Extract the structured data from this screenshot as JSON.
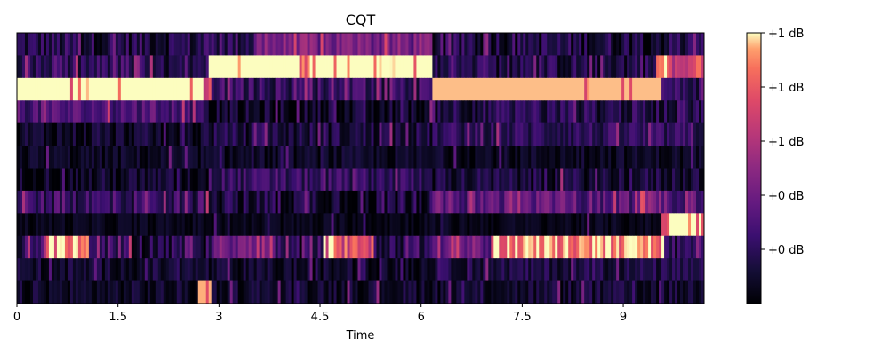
{
  "chart_data": {
    "type": "heatmap",
    "title": "CQT",
    "xlabel": "Time",
    "ylabel": "",
    "xlim": [
      0,
      10.2
    ],
    "x_ticks": [
      0,
      1.5,
      3,
      4.5,
      6,
      7.5,
      9
    ],
    "x_tick_labels": [
      "0",
      "1.5",
      "3",
      "4.5",
      "6",
      "7.5",
      "9"
    ],
    "y_rows": 12,
    "colormap": "magma",
    "colorbar": {
      "tick_labels": [
        "+1 dB",
        "+1 dB",
        "+1 dB",
        "+0 dB",
        "+0 dB"
      ],
      "tick_fractions": [
        1.0,
        0.8,
        0.6,
        0.4,
        0.2
      ]
    },
    "rows_top_to_bottom": [
      {
        "segments": [
          {
            "x0": 0.0,
            "x1": 2.85,
            "v": 0.16
          },
          {
            "x0": 2.85,
            "x1": 3.5,
            "v": 0.2
          },
          {
            "x0": 3.5,
            "x1": 6.15,
            "v": 0.42
          },
          {
            "x0": 6.15,
            "x1": 10.2,
            "v": 0.14
          }
        ],
        "variation": 0.16,
        "spikes": 0.12
      },
      {
        "segments": [
          {
            "x0": 0.0,
            "x1": 2.05,
            "v": 0.18
          },
          {
            "x0": 2.05,
            "x1": 2.85,
            "v": 0.1
          },
          {
            "x0": 2.85,
            "x1": 6.15,
            "v": 1.0
          },
          {
            "x0": 6.15,
            "x1": 9.5,
            "v": 0.15
          },
          {
            "x0": 9.5,
            "x1": 9.7,
            "v": 0.85
          },
          {
            "x0": 9.7,
            "x1": 10.2,
            "v": 0.62
          }
        ],
        "variation": 0.14,
        "spikes": 0.18
      },
      {
        "segments": [
          {
            "x0": 0.0,
            "x1": 2.75,
            "v": 1.0
          },
          {
            "x0": 2.75,
            "x1": 2.9,
            "v": 0.75
          },
          {
            "x0": 2.9,
            "x1": 6.15,
            "v": 0.22
          },
          {
            "x0": 6.15,
            "x1": 9.55,
            "v": 0.96
          },
          {
            "x0": 9.55,
            "x1": 10.2,
            "v": 0.2
          }
        ],
        "variation": 0.14,
        "spikes": 0.2
      },
      {
        "segments": [
          {
            "x0": 0.0,
            "x1": 2.8,
            "v": 0.3
          },
          {
            "x0": 2.8,
            "x1": 6.15,
            "v": 0.06
          },
          {
            "x0": 6.15,
            "x1": 10.2,
            "v": 0.16
          }
        ],
        "variation": 0.14,
        "spikes": 0.12
      },
      {
        "segments": [
          {
            "x0": 0.0,
            "x1": 2.75,
            "v": 0.08
          },
          {
            "x0": 2.75,
            "x1": 6.15,
            "v": 0.13
          },
          {
            "x0": 6.15,
            "x1": 10.2,
            "v": 0.2
          }
        ],
        "variation": 0.12,
        "spikes": 0.08
      },
      {
        "segments": [
          {
            "x0": 0.0,
            "x1": 10.2,
            "v": 0.07
          }
        ],
        "variation": 0.08,
        "spikes": 0.06
      },
      {
        "segments": [
          {
            "x0": 0.0,
            "x1": 2.85,
            "v": 0.08
          },
          {
            "x0": 2.85,
            "x1": 6.15,
            "v": 0.22
          },
          {
            "x0": 6.15,
            "x1": 10.2,
            "v": 0.12
          }
        ],
        "variation": 0.12,
        "spikes": 0.1
      },
      {
        "segments": [
          {
            "x0": 0.0,
            "x1": 2.85,
            "v": 0.22
          },
          {
            "x0": 2.85,
            "x1": 6.15,
            "v": 0.12
          },
          {
            "x0": 6.15,
            "x1": 10.2,
            "v": 0.34
          }
        ],
        "variation": 0.16,
        "spikes": 0.16
      },
      {
        "segments": [
          {
            "x0": 0.0,
            "x1": 9.55,
            "v": 0.05
          },
          {
            "x0": 9.55,
            "x1": 9.65,
            "v": 0.7
          },
          {
            "x0": 9.65,
            "x1": 10.2,
            "v": 1.0
          }
        ],
        "variation": 0.06,
        "spikes": 0.04
      },
      {
        "segments": [
          {
            "x0": 0.0,
            "x1": 0.45,
            "v": 0.2
          },
          {
            "x0": 0.45,
            "x1": 1.05,
            "v": 0.85
          },
          {
            "x0": 1.05,
            "x1": 2.9,
            "v": 0.16
          },
          {
            "x0": 2.9,
            "x1": 3.85,
            "v": 0.42
          },
          {
            "x0": 3.85,
            "x1": 4.55,
            "v": 0.14
          },
          {
            "x0": 4.55,
            "x1": 5.3,
            "v": 0.72
          },
          {
            "x0": 5.3,
            "x1": 6.15,
            "v": 0.2
          },
          {
            "x0": 6.15,
            "x1": 6.95,
            "v": 0.38
          },
          {
            "x0": 6.95,
            "x1": 7.05,
            "v": 0.18
          },
          {
            "x0": 7.05,
            "x1": 9.6,
            "v": 0.88
          },
          {
            "x0": 9.6,
            "x1": 10.2,
            "v": 0.2
          }
        ],
        "variation": 0.16,
        "spikes": 0.2
      },
      {
        "segments": [
          {
            "x0": 0.0,
            "x1": 2.85,
            "v": 0.1
          },
          {
            "x0": 2.85,
            "x1": 6.15,
            "v": 0.08
          },
          {
            "x0": 6.15,
            "x1": 10.2,
            "v": 0.14
          }
        ],
        "variation": 0.1,
        "spikes": 0.08
      },
      {
        "segments": [
          {
            "x0": 0.0,
            "x1": 2.7,
            "v": 0.08
          },
          {
            "x0": 2.7,
            "x1": 2.9,
            "v": 0.95
          },
          {
            "x0": 2.9,
            "x1": 10.2,
            "v": 0.1
          }
        ],
        "variation": 0.1,
        "spikes": 0.06
      }
    ]
  }
}
